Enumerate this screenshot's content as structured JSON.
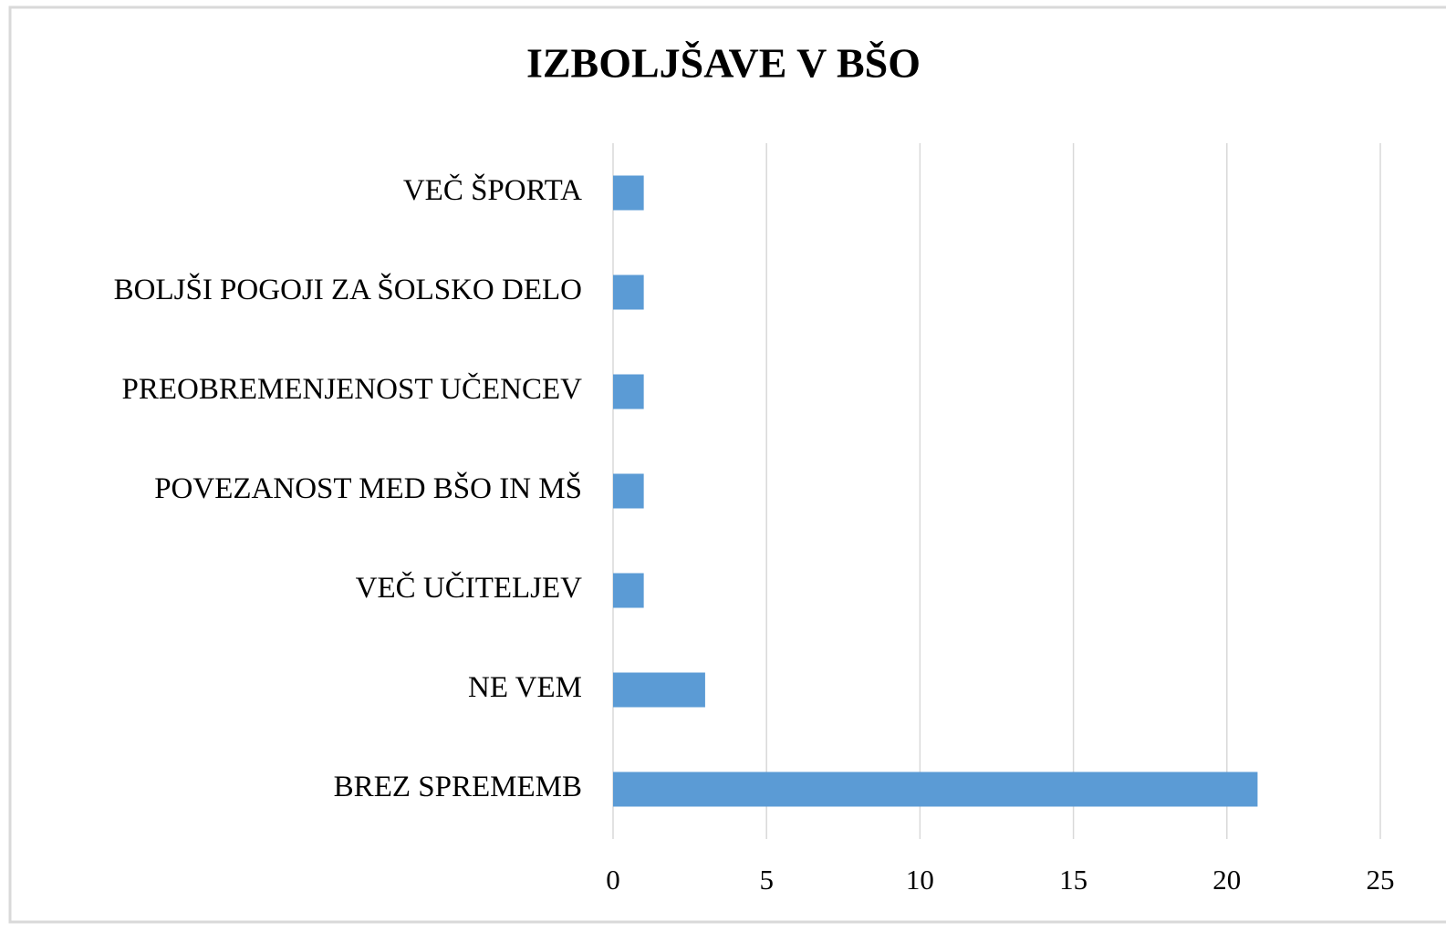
{
  "chart_data": {
    "type": "bar",
    "orientation": "horizontal",
    "title": "IZBOLJŠAVE V BŠO",
    "categories": [
      "VEČ ŠPORTA",
      "BOLJŠI POGOJI ZA ŠOLSKO DELO",
      "PREOBREMENJENOST UČENCEV",
      "POVEZANOST MED BŠO IN MŠ",
      "VEČ UČITELJEV",
      "NE VEM",
      "BREZ SPREMEMB"
    ],
    "values": [
      1,
      1,
      1,
      1,
      1,
      3,
      21
    ],
    "color": "#5b9bd5",
    "xlim": [
      0,
      25
    ],
    "xticks": [
      0,
      5,
      10,
      15,
      20,
      25
    ],
    "grid": true
  }
}
